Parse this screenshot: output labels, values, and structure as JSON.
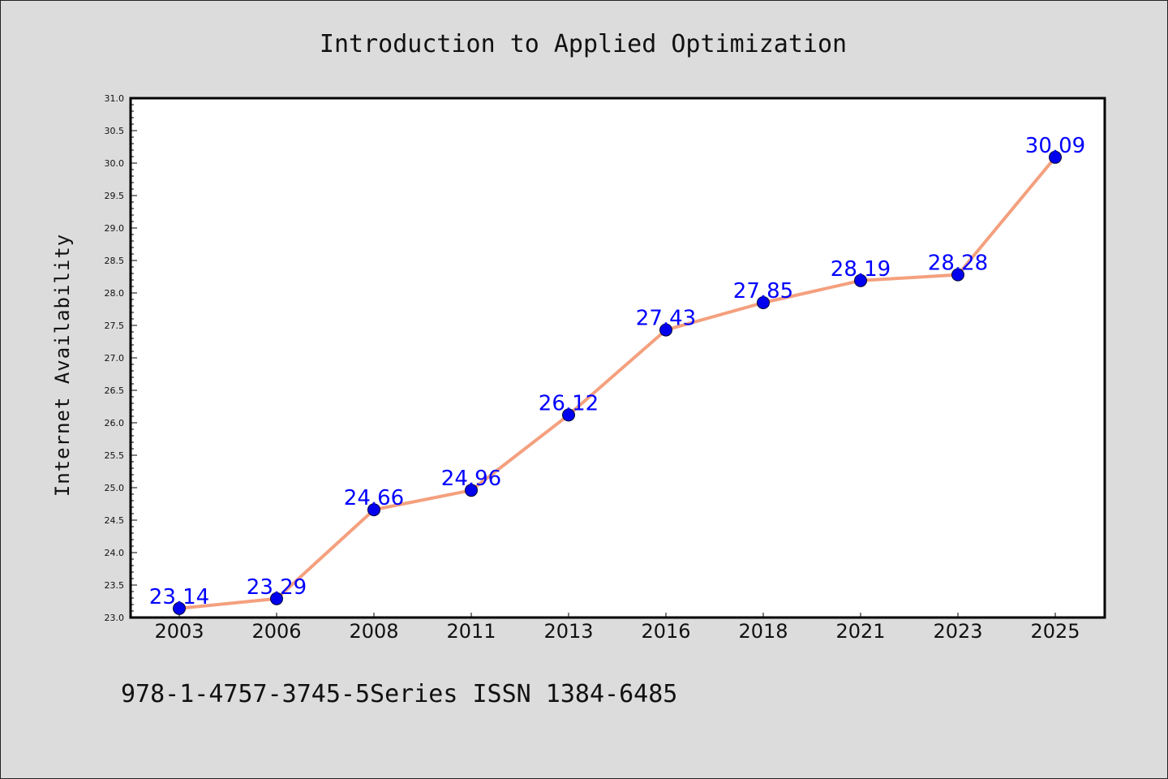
{
  "chart_data": {
    "type": "line",
    "title": "Introduction to Applied Optimization",
    "xlabel": "",
    "ylabel": "Internet Availability",
    "categories": [
      "2003",
      "2006",
      "2008",
      "2011",
      "2013",
      "2016",
      "2018",
      "2021",
      "2023",
      "2025"
    ],
    "series": [
      {
        "values": [
          23.14,
          23.29,
          24.66,
          24.96,
          26.12,
          27.43,
          27.85,
          28.19,
          28.28,
          30.09
        ],
        "labels": [
          "23.14",
          "23.29",
          "24.66",
          "24.96",
          "26.12",
          "27.43",
          "27.85",
          "28.19",
          "28.28",
          "30.09"
        ],
        "line_color": "#f4a07e",
        "marker_color": "#0000ee"
      }
    ],
    "ylim": [
      23.0,
      31.0
    ],
    "yticks": [
      "23.0",
      "23.5",
      "24.0",
      "24.5",
      "25.0",
      "25.5",
      "26.0",
      "26.5",
      "27.0",
      "27.5",
      "28.0",
      "28.5",
      "29.0",
      "29.5",
      "30.0",
      "30.5",
      "31.0"
    ],
    "grid": false,
    "legend": "none"
  },
  "footer": {
    "text": "978-1-4757-3745-5Series ISSN 1384-6485"
  },
  "colors": {
    "background": "#dcdcdc",
    "plot_background": "#ffffff",
    "label_color": "#0000ff"
  }
}
